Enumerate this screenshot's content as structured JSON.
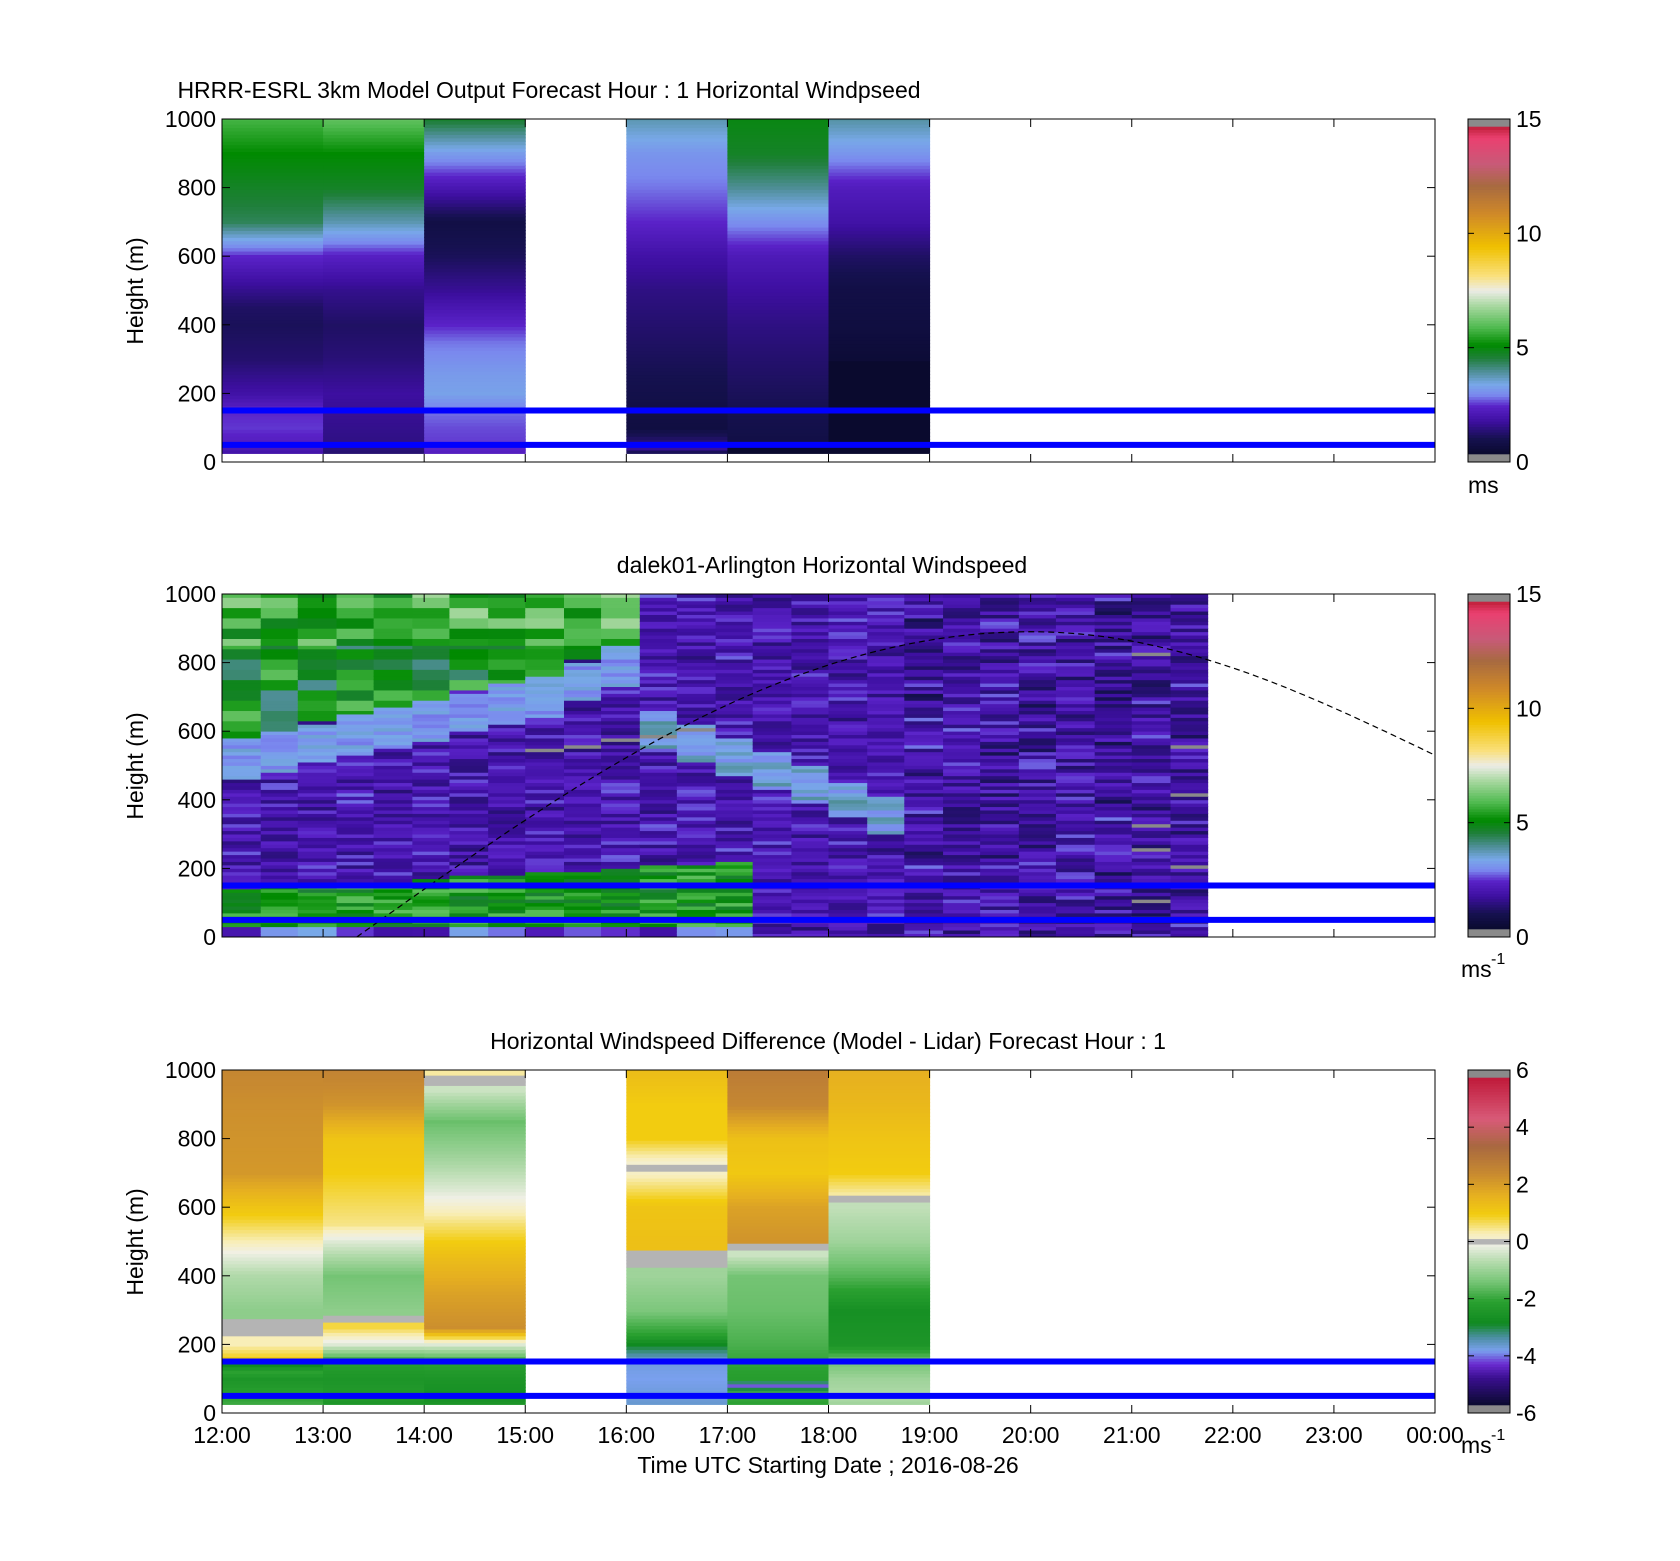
{
  "figure": {
    "x_axis_label": "Time UTC  Starting Date ; 2016-08-26",
    "x_tick_labels": [
      "12:00",
      "13:00",
      "14:00",
      "15:00",
      "16:00",
      "17:00",
      "18:00",
      "19:00",
      "20:00",
      "21:00",
      "22:00",
      "23:00",
      "00:00"
    ],
    "y_axis_label": "Height (m)",
    "y_tick_labels": [
      "0",
      "200",
      "400",
      "600",
      "800",
      "1000"
    ],
    "reference_lines_m": [
      50,
      150
    ],
    "reference_line_color": "#0000ff"
  },
  "chart_data": [
    {
      "type": "heatmap",
      "title": "HRRR-ESRL 3km Model Output   Forecast Hour : 1 Horizontal Windpseed",
      "ylabel": "Height (m)",
      "xlim": [
        "12:00",
        "00:00"
      ],
      "ylim": [
        0,
        1000
      ],
      "colorbar": {
        "label": "ms",
        "ticks": [
          0,
          5,
          10,
          15
        ],
        "range": [
          0,
          15
        ]
      },
      "columns": [
        {
          "start": "12:00",
          "end": "13:00",
          "profile": [
            [
              1000,
              5.7
            ],
            [
              900,
              5.0
            ],
            [
              800,
              4.6
            ],
            [
              700,
              4.2
            ],
            [
              600,
              2.2
            ],
            [
              500,
              1.3
            ],
            [
              450,
              0.9
            ],
            [
              400,
              0.8
            ],
            [
              300,
              1.0
            ],
            [
              200,
              1.6
            ],
            [
              150,
              2.2
            ],
            [
              100,
              2.3
            ],
            [
              50,
              2.0
            ],
            [
              25,
              1.6
            ]
          ]
        },
        {
          "start": "13:00",
          "end": "14:00",
          "profile": [
            [
              1000,
              6.0
            ],
            [
              900,
              5.0
            ],
            [
              800,
              4.6
            ],
            [
              700,
              3.6
            ],
            [
              600,
              2.1
            ],
            [
              500,
              1.3
            ],
            [
              400,
              0.9
            ],
            [
              300,
              1.1
            ],
            [
              200,
              1.5
            ],
            [
              150,
              1.4
            ],
            [
              100,
              1.3
            ],
            [
              50,
              1.2
            ],
            [
              25,
              1.0
            ]
          ]
        },
        {
          "start": "14:00",
          "end": "15:00",
          "profile": [
            [
              1000,
              4.5
            ],
            [
              900,
              3.0
            ],
            [
              800,
              1.8
            ],
            [
              700,
              0.5
            ],
            [
              600,
              0.8
            ],
            [
              500,
              1.4
            ],
            [
              450,
              1.8
            ],
            [
              400,
              2.2
            ],
            [
              350,
              2.6
            ],
            [
              300,
              2.8
            ],
            [
              250,
              3.0
            ],
            [
              200,
              3.1
            ],
            [
              150,
              2.6
            ],
            [
              100,
              2.4
            ],
            [
              50,
              2.3
            ],
            [
              25,
              2.0
            ]
          ]
        },
        {
          "start": "16:00",
          "end": "17:00",
          "profile": [
            [
              1000,
              3.6
            ],
            [
              900,
              2.9
            ],
            [
              800,
              2.6
            ],
            [
              700,
              2.2
            ],
            [
              600,
              1.6
            ],
            [
              500,
              1.2
            ],
            [
              400,
              1.0
            ],
            [
              300,
              0.8
            ],
            [
              200,
              0.6
            ],
            [
              100,
              0.4
            ],
            [
              40,
              1.4
            ],
            [
              25,
              0.5
            ]
          ]
        },
        {
          "start": "17:00",
          "end": "18:00",
          "profile": [
            [
              1000,
              4.8
            ],
            [
              900,
              4.6
            ],
            [
              800,
              3.8
            ],
            [
              700,
              2.8
            ],
            [
              600,
              1.9
            ],
            [
              500,
              1.5
            ],
            [
              400,
              1.2
            ],
            [
              300,
              1.0
            ],
            [
              200,
              0.8
            ],
            [
              100,
              0.6
            ],
            [
              50,
              0.5
            ],
            [
              25,
              -1
            ]
          ]
        },
        {
          "start": "18:00",
          "end": "19:00",
          "profile": [
            [
              1000,
              3.7
            ],
            [
              900,
              2.9
            ],
            [
              800,
              2.0
            ],
            [
              700,
              1.6
            ],
            [
              600,
              0.9
            ],
            [
              500,
              0.5
            ],
            [
              400,
              0.4
            ],
            [
              300,
              0.2
            ],
            [
              250,
              -1
            ],
            [
              25,
              -1
            ]
          ]
        }
      ]
    },
    {
      "type": "heatmap",
      "title": "dalek01-Arlington  Horizontal Windspeed",
      "ylabel": "Height (m)",
      "xlim": [
        "12:00",
        "00:00"
      ],
      "ylim": [
        0,
        1000
      ],
      "data_extent": [
        "12:00",
        "21:50"
      ],
      "colorbar": {
        "label": "ms",
        "label_superscript": "-1",
        "ticks": [
          0,
          5,
          10,
          15
        ],
        "range": [
          0,
          15
        ]
      },
      "dashed_curve": {
        "start": "13:20",
        "end": "00:00",
        "values_m": [
          0,
          890,
          530
        ],
        "peak_time": "20:00"
      }
    },
    {
      "type": "heatmap",
      "title": "Horizontal Windspeed Difference (Model - Lidar) Forecast Hour : 1",
      "ylabel": "Height (m)",
      "xlabel": "Time UTC  Starting Date ; 2016-08-26",
      "xlim": [
        "12:00",
        "00:00"
      ],
      "ylim": [
        0,
        1000
      ],
      "colorbar": {
        "label": "ms",
        "label_superscript": "-1",
        "ticks": [
          -6,
          -4,
          -2,
          0,
          2,
          4,
          6
        ],
        "range": [
          -6,
          6
        ]
      },
      "columns": [
        {
          "start": "12:00",
          "end": "13:00",
          "profile": [
            [
              1000,
              2.6
            ],
            [
              900,
              2.4
            ],
            [
              700,
              2.2
            ],
            [
              600,
              1.2
            ],
            [
              500,
              0.3
            ],
            [
              460,
              -0.2
            ],
            [
              400,
              -0.8
            ],
            [
              300,
              -1.2
            ],
            [
              260,
              -9
            ],
            [
              200,
              0.3
            ],
            [
              160,
              1.0
            ],
            [
              150,
              -3.4
            ],
            [
              120,
              -2.2
            ],
            [
              100,
              -2.6
            ],
            [
              50,
              -2.2
            ],
            [
              25,
              -2.0
            ]
          ]
        },
        {
          "start": "13:00",
          "end": "14:00",
          "profile": [
            [
              1000,
              2.7
            ],
            [
              900,
              2.3
            ],
            [
              800,
              1.2
            ],
            [
              700,
              1.0
            ],
            [
              550,
              0.5
            ],
            [
              500,
              -0.3
            ],
            [
              400,
              -1.5
            ],
            [
              300,
              -1.2
            ],
            [
              280,
              -9
            ],
            [
              250,
              0.8
            ],
            [
              200,
              -0.3
            ],
            [
              150,
              -2.3
            ],
            [
              100,
              -2.6
            ],
            [
              50,
              -2.4
            ],
            [
              25,
              -2.6
            ]
          ]
        },
        {
          "start": "14:00",
          "end": "15:00",
          "profile": [
            [
              1000,
              0.4
            ],
            [
              970,
              -9
            ],
            [
              940,
              -0.5
            ],
            [
              850,
              -1.6
            ],
            [
              750,
              -1.0
            ],
            [
              650,
              -0.3
            ],
            [
              550,
              0.6
            ],
            [
              450,
              1.4
            ],
            [
              350,
              2.0
            ],
            [
              250,
              2.4
            ],
            [
              200,
              -0.3
            ],
            [
              150,
              -2.2
            ],
            [
              100,
              -2.6
            ],
            [
              50,
              -2.8
            ],
            [
              25,
              -2.6
            ]
          ]
        },
        {
          "start": "16:00",
          "end": "17:00",
          "profile": [
            [
              1000,
              1.4
            ],
            [
              900,
              1.0
            ],
            [
              800,
              1.0
            ],
            [
              730,
              0.1
            ],
            [
              720,
              -9
            ],
            [
              700,
              0.2
            ],
            [
              600,
              1.2
            ],
            [
              500,
              1.3
            ],
            [
              450,
              -9
            ],
            [
              400,
              -1.0
            ],
            [
              300,
              -1.4
            ],
            [
              230,
              -2.2
            ],
            [
              200,
              -3.0
            ],
            [
              150,
              -3.9
            ],
            [
              100,
              -4.0
            ],
            [
              25,
              -3.8
            ]
          ]
        },
        {
          "start": "17:00",
          "end": "18:00",
          "profile": [
            [
              1000,
              2.9
            ],
            [
              900,
              2.6
            ],
            [
              800,
              1.3
            ],
            [
              700,
              1.1
            ],
            [
              600,
              2.0
            ],
            [
              500,
              2.3
            ],
            [
              490,
              -9
            ],
            [
              460,
              -0.5
            ],
            [
              400,
              -1.5
            ],
            [
              300,
              -1.6
            ],
            [
              200,
              -1.9
            ],
            [
              100,
              -2.3
            ],
            [
              80,
              -4.3
            ],
            [
              60,
              -2.0
            ],
            [
              25,
              -2.2
            ]
          ]
        },
        {
          "start": "18:00",
          "end": "19:00",
          "profile": [
            [
              1000,
              1.7
            ],
            [
              900,
              1.5
            ],
            [
              800,
              1.2
            ],
            [
              700,
              1.0
            ],
            [
              640,
              0.4
            ],
            [
              625,
              -9
            ],
            [
              600,
              -0.6
            ],
            [
              500,
              -1.0
            ],
            [
              400,
              -1.8
            ],
            [
              350,
              -2.3
            ],
            [
              300,
              -2.8
            ],
            [
              200,
              -2.6
            ],
            [
              150,
              -1.5
            ],
            [
              100,
              -1.0
            ],
            [
              50,
              -0.8
            ],
            [
              25,
              -1.0
            ]
          ]
        }
      ]
    }
  ]
}
